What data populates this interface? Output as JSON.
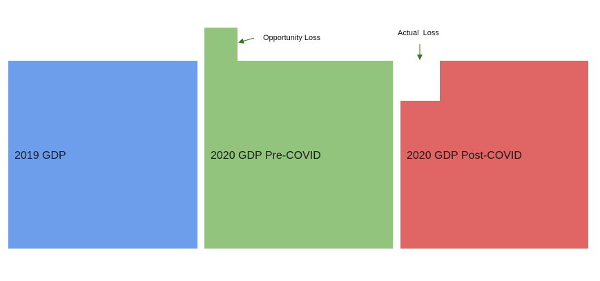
{
  "colors": {
    "gdp_2019": "#6d9eeb",
    "gdp_2020_pre_covid": "#93c47d",
    "gdp_2020_post_covid": "#e06666",
    "actual_loss_cutout": "#ffffff",
    "arrow": "#38761d"
  },
  "blocks": {
    "gdp_2019": {
      "label": "2019 GDP"
    },
    "gdp_2020_pre_covid": {
      "label": "2020 GDP Pre-COVID"
    },
    "gdp_2020_post_covid": {
      "label": "2020 GDP Post-COVID"
    }
  },
  "annotations": {
    "opportunity_loss": "Opportunity Loss",
    "actual_loss": "Actual  Loss"
  }
}
